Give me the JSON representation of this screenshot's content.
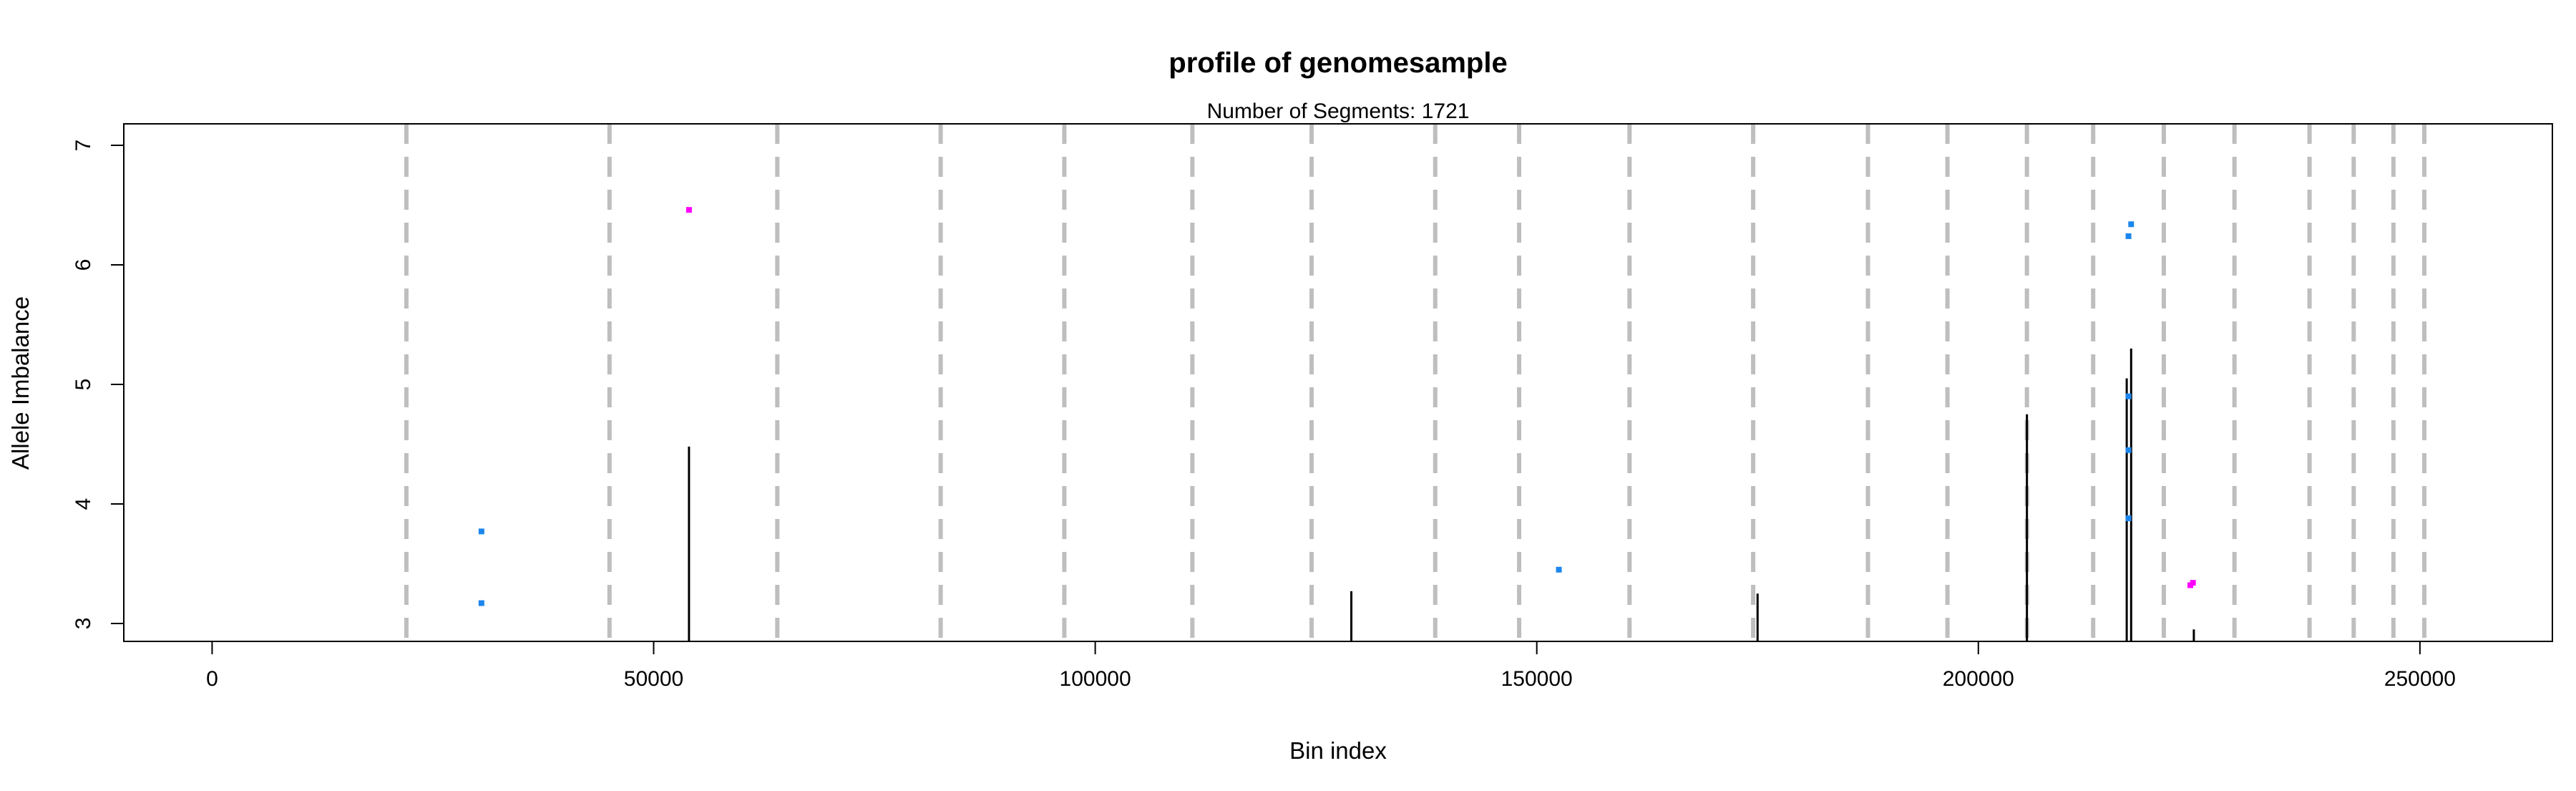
{
  "chart_data": {
    "type": "scatter",
    "title": "profile of genomesample",
    "subtitle": "Number of Segments: 1721",
    "xlabel": "Bin index",
    "ylabel": "Allele Imbalance",
    "xlim": [
      -10000,
      265000
    ],
    "ylim": [
      2.85,
      7.18
    ],
    "x_ticks": [
      0,
      50000,
      100000,
      150000,
      200000,
      250000
    ],
    "x_tick_labels": [
      "0",
      "50000",
      "100000",
      "150000",
      "200000",
      "250000"
    ],
    "y_ticks": [
      3,
      4,
      5,
      6,
      7
    ],
    "y_tick_labels": [
      "3",
      "4",
      "5",
      "6",
      "7"
    ],
    "legend": "none",
    "grid": false,
    "chromosome_boundaries": [
      22000,
      45000,
      64000,
      82500,
      96500,
      111000,
      124500,
      138500,
      148000,
      160500,
      174500,
      187500,
      196500,
      205500,
      213000,
      221000,
      229000,
      237500,
      242500,
      247000,
      250500
    ],
    "colors": {
      "background": "#ffffff",
      "boundary": "#bebebe",
      "segment": "#000000",
      "blue_point": "#1c86ee",
      "magenta_point": "#ff00ff",
      "frame": "#000000"
    },
    "series": [
      {
        "name": "segments",
        "style": "vertical-line",
        "color": "#000000",
        "values": [
          {
            "x": 54000,
            "y0": 2.85,
            "y1": 4.48
          },
          {
            "x": 129000,
            "y0": 2.85,
            "y1": 3.27
          },
          {
            "x": 175000,
            "y0": 2.85,
            "y1": 3.25
          },
          {
            "x": 205500,
            "y0": 2.85,
            "y1": 4.75
          },
          {
            "x": 216800,
            "y0": 2.85,
            "y1": 5.05
          },
          {
            "x": 217300,
            "y0": 2.85,
            "y1": 5.3
          },
          {
            "x": 224400,
            "y0": 2.85,
            "y1": 2.95
          }
        ]
      },
      {
        "name": "blue points",
        "style": "point",
        "color": "#1c86ee",
        "values": [
          {
            "x": 30500,
            "y": 3.77
          },
          {
            "x": 30500,
            "y": 3.17
          },
          {
            "x": 152500,
            "y": 3.45
          },
          {
            "x": 217000,
            "y": 6.24
          },
          {
            "x": 217300,
            "y": 6.34
          },
          {
            "x": 217000,
            "y": 4.9
          },
          {
            "x": 217000,
            "y": 4.45
          },
          {
            "x": 217000,
            "y": 3.88
          }
        ]
      },
      {
        "name": "magenta points",
        "style": "point",
        "color": "#ff00ff",
        "values": [
          {
            "x": 54000,
            "y": 6.46
          },
          {
            "x": 224000,
            "y": 3.32
          },
          {
            "x": 224300,
            "y": 3.34
          }
        ]
      }
    ]
  }
}
